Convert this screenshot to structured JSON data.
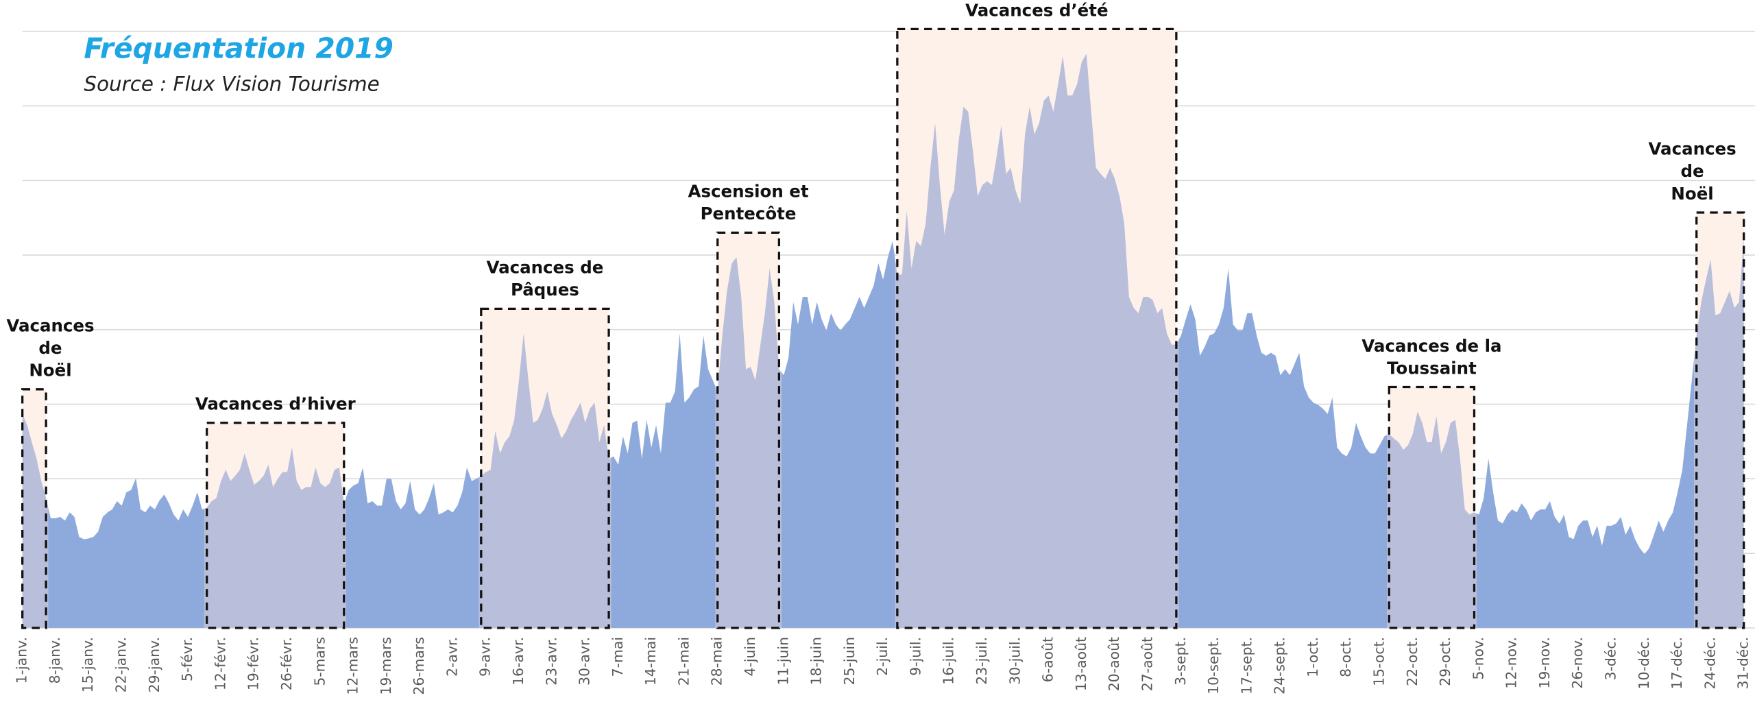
{
  "chart_data": {
    "type": "area",
    "title": "Fréquentation 2019",
    "subtitle": "Source : Flux Vision Tourisme",
    "color": "#8eaadc",
    "vacation_color": "#b9bedb",
    "box_fill": "#fdf1ea",
    "box_stroke": "#111111",
    "title_color": "#1ea5e3",
    "grid": true,
    "ylim": [
      0,
      800
    ],
    "yticks": [
      0,
      100,
      200,
      300,
      400,
      500,
      600,
      700,
      800
    ],
    "categories": [
      "1-janv.",
      null,
      null,
      null,
      null,
      null,
      null,
      "8-janv.",
      null,
      null,
      null,
      null,
      null,
      null,
      "15-janv.",
      null,
      null,
      null,
      null,
      null,
      null,
      "22-janv.",
      null,
      null,
      null,
      null,
      null,
      null,
      "29-janv.",
      null,
      null,
      null,
      null,
      null,
      null,
      "5-févr.",
      null,
      null,
      null,
      null,
      null,
      null,
      "12-févr.",
      null,
      null,
      null,
      null,
      null,
      null,
      "19-févr.",
      null,
      null,
      null,
      null,
      null,
      null,
      "26-févr.",
      null,
      null,
      null,
      null,
      null,
      null,
      "5-mars",
      null,
      null,
      null,
      null,
      null,
      null,
      "12-mars",
      null,
      null,
      null,
      null,
      null,
      null,
      "19-mars",
      null,
      null,
      null,
      null,
      null,
      null,
      "26-mars",
      null,
      null,
      null,
      null,
      null,
      null,
      "2-avr.",
      null,
      null,
      null,
      null,
      null,
      null,
      "9-avr.",
      null,
      null,
      null,
      null,
      null,
      null,
      "16-avr.",
      null,
      null,
      null,
      null,
      null,
      null,
      "23-avr.",
      null,
      null,
      null,
      null,
      null,
      null,
      "30-avr.",
      null,
      null,
      null,
      null,
      null,
      null,
      "7-mai",
      null,
      null,
      null,
      null,
      null,
      null,
      "14-mai",
      null,
      null,
      null,
      null,
      null,
      null,
      "21-mai",
      null,
      null,
      null,
      null,
      null,
      null,
      "28-mai",
      null,
      null,
      null,
      null,
      null,
      null,
      "4-juin",
      null,
      null,
      null,
      null,
      null,
      null,
      "11-juin",
      null,
      null,
      null,
      null,
      null,
      null,
      "18-juin",
      null,
      null,
      null,
      null,
      null,
      null,
      "25-juin",
      null,
      null,
      null,
      null,
      null,
      null,
      "2-juil.",
      null,
      null,
      null,
      null,
      null,
      null,
      "9-juil.",
      null,
      null,
      null,
      null,
      null,
      null,
      "16-juil.",
      null,
      null,
      null,
      null,
      null,
      null,
      "23-juil.",
      null,
      null,
      null,
      null,
      null,
      null,
      "30-juil.",
      null,
      null,
      null,
      null,
      null,
      null,
      "6-août",
      null,
      null,
      null,
      null,
      null,
      null,
      "13-août",
      null,
      null,
      null,
      null,
      null,
      null,
      "20-août",
      null,
      null,
      null,
      null,
      null,
      null,
      "27-août",
      null,
      null,
      null,
      null,
      null,
      null,
      "3-sept.",
      null,
      null,
      null,
      null,
      null,
      null,
      "10-sept.",
      null,
      null,
      null,
      null,
      null,
      null,
      "17-sept.",
      null,
      null,
      null,
      null,
      null,
      null,
      "24-sept.",
      null,
      null,
      null,
      null,
      null,
      null,
      "1-oct.",
      null,
      null,
      null,
      null,
      null,
      null,
      "8-oct.",
      null,
      null,
      null,
      null,
      null,
      null,
      "15-oct.",
      null,
      null,
      null,
      null,
      null,
      null,
      "22-oct.",
      null,
      null,
      null,
      null,
      null,
      null,
      "29-oct.",
      null,
      null,
      null,
      null,
      null,
      null,
      "5-nov.",
      null,
      null,
      null,
      null,
      null,
      null,
      "12-nov.",
      null,
      null,
      null,
      null,
      null,
      null,
      "19-nov.",
      null,
      null,
      null,
      null,
      null,
      null,
      "26-nov.",
      null,
      null,
      null,
      null,
      null,
      null,
      "3-déc.",
      null,
      null,
      null,
      null,
      null,
      null,
      "10-déc.",
      null,
      null,
      null,
      null,
      null,
      null,
      "17-déc.",
      null,
      null,
      null,
      null,
      null,
      null,
      "24-déc.",
      null,
      null,
      null,
      null,
      null,
      null,
      "31-déc."
    ],
    "values": [
      287,
      272,
      249,
      227,
      197,
      174,
      147,
      147,
      149,
      144,
      155,
      149,
      122,
      119,
      120,
      122,
      129,
      149,
      155,
      159,
      170,
      164,
      182,
      185,
      201,
      159,
      155,
      164,
      159,
      171,
      179,
      167,
      152,
      144,
      159,
      149,
      164,
      182,
      159,
      161,
      170,
      174,
      197,
      212,
      197,
      204,
      212,
      234,
      212,
      192,
      197,
      204,
      219,
      189,
      200,
      209,
      209,
      242,
      197,
      185,
      189,
      189,
      215,
      194,
      189,
      194,
      212,
      215,
      167,
      185,
      191,
      194,
      215,
      167,
      170,
      164,
      164,
      200,
      200,
      170,
      159,
      167,
      197,
      159,
      152,
      159,
      174,
      194,
      152,
      155,
      159,
      155,
      164,
      182,
      215,
      197,
      200,
      204,
      209,
      212,
      264,
      234,
      249,
      257,
      279,
      332,
      395,
      332,
      275,
      279,
      294,
      317,
      287,
      272,
      254,
      264,
      279,
      290,
      302,
      275,
      294,
      302,
      249,
      272,
      227,
      230,
      219,
      257,
      234,
      275,
      278,
      227,
      279,
      242,
      272,
      234,
      302,
      302,
      317,
      395,
      302,
      309,
      320,
      324,
      392,
      347,
      332,
      317,
      392,
      452,
      489,
      497,
      444,
      347,
      350,
      332,
      377,
      422,
      482,
      437,
      347,
      339,
      362,
      437,
      407,
      444,
      444,
      407,
      437,
      414,
      399,
      422,
      407,
      399,
      407,
      414,
      429,
      444,
      429,
      444,
      459,
      489,
      467,
      497,
      519,
      474,
      474,
      559,
      482,
      519,
      512,
      542,
      617,
      677,
      594,
      527,
      572,
      587,
      654,
      699,
      692,
      639,
      579,
      594,
      599,
      594,
      632,
      674,
      609,
      617,
      587,
      569,
      662,
      699,
      662,
      677,
      707,
      714,
      692,
      729,
      767,
      714,
      714,
      729,
      759,
      770,
      692,
      617,
      609,
      602,
      617,
      602,
      579,
      542,
      444,
      429,
      422,
      444,
      444,
      440,
      422,
      429,
      395,
      380,
      380,
      392,
      414,
      434,
      414,
      365,
      377,
      392,
      395,
      407,
      429,
      482,
      407,
      399,
      399,
      422,
      422,
      392,
      369,
      365,
      369,
      365,
      339,
      347,
      339,
      354,
      369,
      324,
      309,
      302,
      299,
      294,
      287,
      309,
      242,
      234,
      230,
      242,
      275,
      257,
      242,
      234,
      234,
      245,
      257,
      260,
      254,
      249,
      239,
      245,
      260,
      290,
      275,
      249,
      249,
      284,
      234,
      249,
      275,
      279,
      227,
      159,
      152,
      155,
      152,
      174,
      227,
      182,
      144,
      140,
      152,
      159,
      155,
      167,
      159,
      144,
      155,
      159,
      159,
      170,
      149,
      140,
      152,
      122,
      119,
      137,
      144,
      144,
      122,
      137,
      110,
      137,
      137,
      140,
      149,
      125,
      137,
      119,
      107,
      99,
      107,
      125,
      144,
      129,
      144,
      155,
      182,
      212,
      272,
      332,
      392,
      437,
      467,
      494,
      419,
      422,
      437,
      452,
      429,
      437,
      524
    ],
    "annotations": [
      {
        "label": [
          "Vacances",
          "de",
          "Noël"
        ],
        "start": 0,
        "end": 5
      },
      {
        "label": [
          "Vacances d’hiver"
        ],
        "start": 39,
        "end": 68
      },
      {
        "label": [
          "Vacances de",
          "Pâques"
        ],
        "start": 97,
        "end": 124
      },
      {
        "label": [
          "Ascension et",
          "Pentecôte"
        ],
        "start": 147,
        "end": 160
      },
      {
        "label": [
          "Vacances d’été"
        ],
        "start": 185,
        "end": 244
      },
      {
        "label": [
          "Vacances de la",
          "Toussaint"
        ],
        "start": 289,
        "end": 307
      },
      {
        "label": [
          "Vacances",
          "de",
          "Noël"
        ],
        "start": 354,
        "end": 364
      }
    ]
  }
}
